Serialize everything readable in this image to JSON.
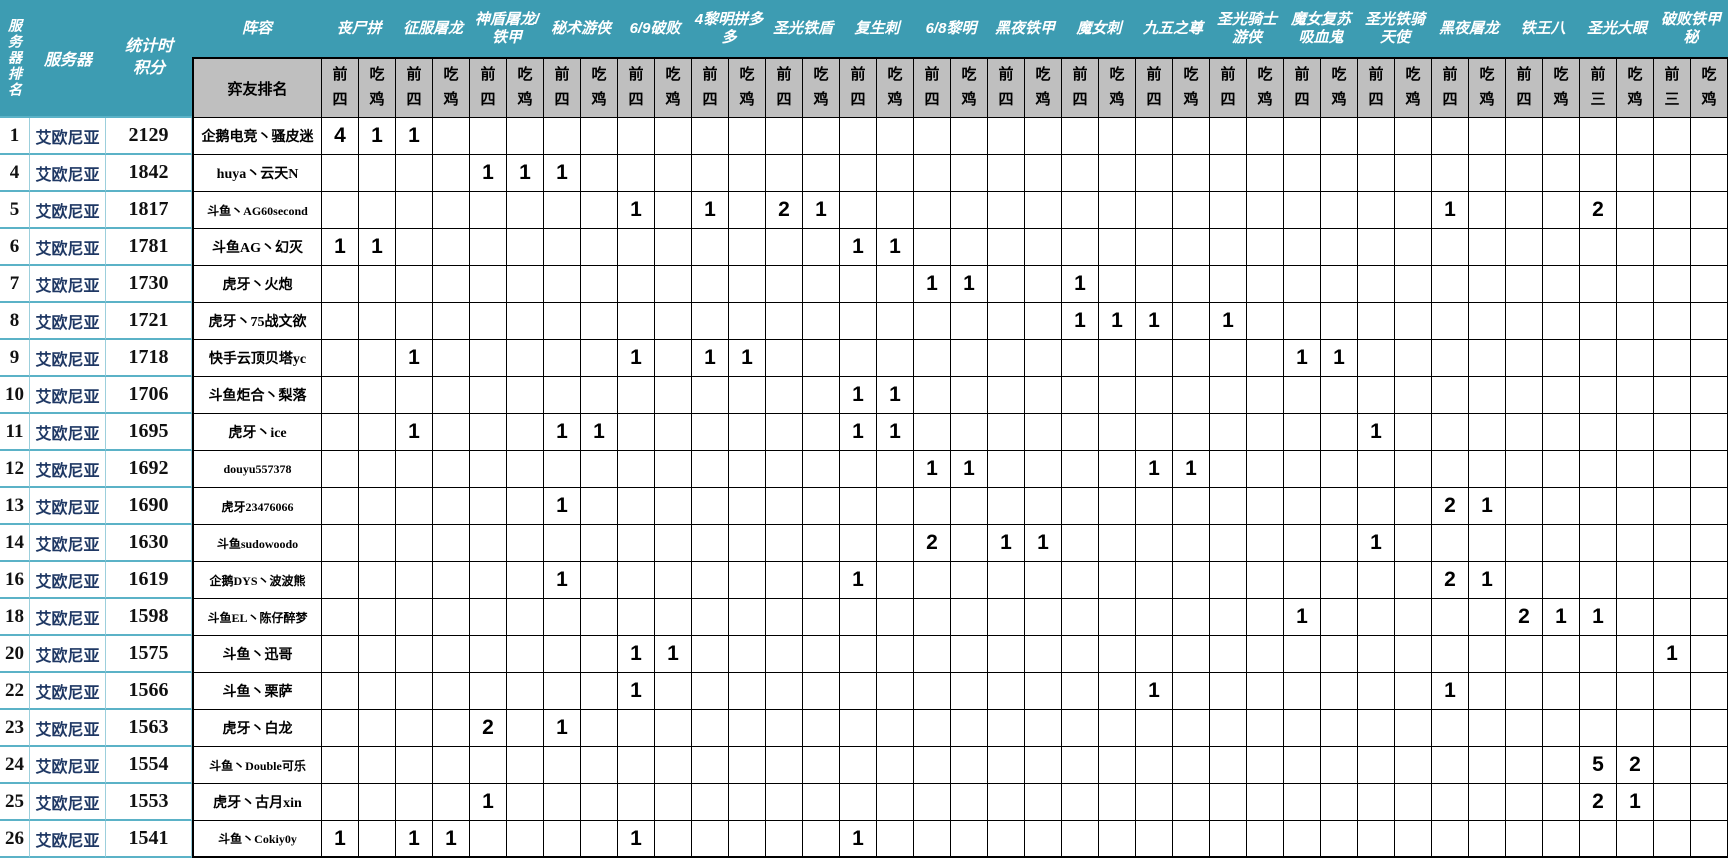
{
  "table": {
    "left_headers": {
      "rank": "服务器排名",
      "server": "服务器",
      "points": "统计时积分"
    },
    "comp_section_title": "阵容",
    "player_rank_header": "弈友排名",
    "comps": [
      {
        "name": "丧尸拼",
        "sub1": "前四",
        "sub2": "吃鸡"
      },
      {
        "name": "征服屠龙",
        "sub1": "前四",
        "sub2": "吃鸡"
      },
      {
        "name": "神盾屠龙/铁甲",
        "sub1": "前四",
        "sub2": "吃鸡"
      },
      {
        "name": "秘术游侠",
        "sub1": "前四",
        "sub2": "吃鸡"
      },
      {
        "name": "6/9破败",
        "sub1": "前四",
        "sub2": "吃鸡"
      },
      {
        "name": "4黎明拼多多",
        "sub1": "前四",
        "sub2": "吃鸡"
      },
      {
        "name": "圣光铁盾",
        "sub1": "前四",
        "sub2": "吃鸡"
      },
      {
        "name": "复生刺",
        "sub1": "前四",
        "sub2": "吃鸡"
      },
      {
        "name": "6/8黎明",
        "sub1": "前四",
        "sub2": "吃鸡"
      },
      {
        "name": "黑夜铁甲",
        "sub1": "前四",
        "sub2": "吃鸡"
      },
      {
        "name": "魔女刺",
        "sub1": "前四",
        "sub2": "吃鸡"
      },
      {
        "name": "九五之尊",
        "sub1": "前四",
        "sub2": "吃鸡"
      },
      {
        "name": "圣光骑士游侠",
        "sub1": "前四",
        "sub2": "吃鸡"
      },
      {
        "name": "魔女复苏吸血鬼",
        "sub1": "前四",
        "sub2": "吃鸡"
      },
      {
        "name": "圣光铁骑天使",
        "sub1": "前四",
        "sub2": "吃鸡"
      },
      {
        "name": "黑夜屠龙",
        "sub1": "前四",
        "sub2": "吃鸡"
      },
      {
        "name": "铁王八",
        "sub1": "前四",
        "sub2": "吃鸡"
      },
      {
        "name": "圣光大眼",
        "sub1": "前三",
        "sub2": "吃鸡"
      },
      {
        "name": "破败铁甲秘",
        "sub1": "前三",
        "sub2": "吃鸡"
      }
    ],
    "rows": [
      {
        "rank": "1",
        "server": "艾欧尼亚",
        "points": "2129",
        "player": "企鹅电竞丶骚皮迷",
        "cells": [
          "4",
          "1",
          "1",
          "",
          "",
          "",
          "",
          "",
          "",
          "",
          "",
          "",
          "",
          "",
          "",
          "",
          "",
          "",
          "",
          "",
          "",
          "",
          "",
          "",
          "",
          "",
          "",
          "",
          "",
          "",
          "",
          "",
          "",
          "",
          "",
          "",
          "",
          ""
        ]
      },
      {
        "rank": "4",
        "server": "艾欧尼亚",
        "points": "1842",
        "player": "huya丶云天N",
        "cells": [
          "",
          "",
          "",
          "",
          "1",
          "1",
          "1",
          "",
          "",
          "",
          "",
          "",
          "",
          "",
          "",
          "",
          "",
          "",
          "",
          "",
          "",
          "",
          "",
          "",
          "",
          "",
          "",
          "",
          "",
          "",
          "",
          "",
          "",
          "",
          "",
          "",
          "",
          ""
        ]
      },
      {
        "rank": "5",
        "server": "艾欧尼亚",
        "points": "1817",
        "player": "斗鱼丶AG60second",
        "cells": [
          "",
          "",
          "",
          "",
          "",
          "",
          "",
          "",
          "1",
          "",
          "1",
          "",
          "2",
          "1",
          "",
          "",
          "",
          "",
          "",
          "",
          "",
          "",
          "",
          "",
          "",
          "",
          "",
          "",
          "",
          "",
          "1",
          "",
          "",
          "",
          "2",
          "",
          "",
          ""
        ]
      },
      {
        "rank": "6",
        "server": "艾欧尼亚",
        "points": "1781",
        "player": "斗鱼AG丶幻灭",
        "cells": [
          "1",
          "1",
          "",
          "",
          "",
          "",
          "",
          "",
          "",
          "",
          "",
          "",
          "",
          "",
          "1",
          "1",
          "",
          "",
          "",
          "",
          "",
          "",
          "",
          "",
          "",
          "",
          "",
          "",
          "",
          "",
          "",
          "",
          "",
          "",
          "",
          "",
          "",
          ""
        ]
      },
      {
        "rank": "7",
        "server": "艾欧尼亚",
        "points": "1730",
        "player": "虎牙丶火炮",
        "cells": [
          "",
          "",
          "",
          "",
          "",
          "",
          "",
          "",
          "",
          "",
          "",
          "",
          "",
          "",
          "",
          "",
          "1",
          "1",
          "",
          "",
          "1",
          "",
          "",
          "",
          "",
          "",
          "",
          "",
          "",
          "",
          "",
          "",
          "",
          "",
          "",
          "",
          "",
          ""
        ]
      },
      {
        "rank": "8",
        "server": "艾欧尼亚",
        "points": "1721",
        "player": "虎牙丶75战文欲",
        "cells": [
          "",
          "",
          "",
          "",
          "",
          "",
          "",
          "",
          "",
          "",
          "",
          "",
          "",
          "",
          "",
          "",
          "",
          "",
          "",
          "",
          "1",
          "1",
          "1",
          "",
          "1",
          "",
          "",
          "",
          "",
          "",
          "",
          "",
          "",
          "",
          "",
          "",
          "",
          ""
        ]
      },
      {
        "rank": "9",
        "server": "艾欧尼亚",
        "points": "1718",
        "player": "快手云顶贝塔yc",
        "cells": [
          "",
          "",
          "1",
          "",
          "",
          "",
          "",
          "",
          "1",
          "",
          "1",
          "1",
          "",
          "",
          "",
          "",
          "",
          "",
          "",
          "",
          "",
          "",
          "",
          "",
          "",
          "",
          "1",
          "1",
          "",
          "",
          "",
          "",
          "",
          "",
          "",
          "",
          "",
          ""
        ]
      },
      {
        "rank": "10",
        "server": "艾欧尼亚",
        "points": "1706",
        "player": "斗鱼炬合丶梨落",
        "cells": [
          "",
          "",
          "",
          "",
          "",
          "",
          "",
          "",
          "",
          "",
          "",
          "",
          "",
          "",
          "1",
          "1",
          "",
          "",
          "",
          "",
          "",
          "",
          "",
          "",
          "",
          "",
          "",
          "",
          "",
          "",
          "",
          "",
          "",
          "",
          "",
          "",
          "",
          ""
        ]
      },
      {
        "rank": "11",
        "server": "艾欧尼亚",
        "points": "1695",
        "player": "虎牙丶ice",
        "cells": [
          "",
          "",
          "1",
          "",
          "",
          "",
          "1",
          "1",
          "",
          "",
          "",
          "",
          "",
          "",
          "1",
          "1",
          "",
          "",
          "",
          "",
          "",
          "",
          "",
          "",
          "",
          "",
          "",
          "",
          "1",
          "",
          "",
          "",
          "",
          "",
          "",
          "",
          "",
          ""
        ]
      },
      {
        "rank": "12",
        "server": "艾欧尼亚",
        "points": "1692",
        "player": "douyu557378",
        "cells": [
          "",
          "",
          "",
          "",
          "",
          "",
          "",
          "",
          "",
          "",
          "",
          "",
          "",
          "",
          "",
          "",
          "1",
          "1",
          "",
          "",
          "",
          "",
          "1",
          "1",
          "",
          "",
          "",
          "",
          "",
          "",
          "",
          "",
          "",
          "",
          "",
          "",
          "",
          ""
        ]
      },
      {
        "rank": "13",
        "server": "艾欧尼亚",
        "points": "1690",
        "player": "虎牙23476066",
        "cells": [
          "",
          "",
          "",
          "",
          "",
          "",
          "1",
          "",
          "",
          "",
          "",
          "",
          "",
          "",
          "",
          "",
          "",
          "",
          "",
          "",
          "",
          "",
          "",
          "",
          "",
          "",
          "",
          "",
          "",
          "",
          "2",
          "1",
          "",
          "",
          "",
          "",
          "",
          ""
        ]
      },
      {
        "rank": "14",
        "server": "艾欧尼亚",
        "points": "1630",
        "player": "斗鱼sudowoodo",
        "cells": [
          "",
          "",
          "",
          "",
          "",
          "",
          "",
          "",
          "",
          "",
          "",
          "",
          "",
          "",
          "",
          "",
          "2",
          "",
          "1",
          "1",
          "",
          "",
          "",
          "",
          "",
          "",
          "",
          "",
          "1",
          "",
          "",
          "",
          "",
          "",
          "",
          "",
          "",
          ""
        ]
      },
      {
        "rank": "16",
        "server": "艾欧尼亚",
        "points": "1619",
        "player": "企鹅DYS丶波波熊",
        "cells": [
          "",
          "",
          "",
          "",
          "",
          "",
          "1",
          "",
          "",
          "",
          "",
          "",
          "",
          "",
          "1",
          "",
          "",
          "",
          "",
          "",
          "",
          "",
          "",
          "",
          "",
          "",
          "",
          "",
          "",
          "",
          "2",
          "1",
          "",
          "",
          "",
          "",
          "",
          ""
        ]
      },
      {
        "rank": "18",
        "server": "艾欧尼亚",
        "points": "1598",
        "player": "斗鱼EL丶陈仔醉梦",
        "cells": [
          "",
          "",
          "",
          "",
          "",
          "",
          "",
          "",
          "",
          "",
          "",
          "",
          "",
          "",
          "",
          "",
          "",
          "",
          "",
          "",
          "",
          "",
          "",
          "",
          "",
          "",
          "1",
          "",
          "",
          "",
          "",
          "",
          "2",
          "1",
          "1",
          "",
          "",
          ""
        ]
      },
      {
        "rank": "20",
        "server": "艾欧尼亚",
        "points": "1575",
        "player": "斗鱼丶迅哥",
        "cells": [
          "",
          "",
          "",
          "",
          "",
          "",
          "",
          "",
          "1",
          "1",
          "",
          "",
          "",
          "",
          "",
          "",
          "",
          "",
          "",
          "",
          "",
          "",
          "",
          "",
          "",
          "",
          "",
          "",
          "",
          "",
          "",
          "",
          "",
          "",
          "",
          "",
          "1",
          ""
        ]
      },
      {
        "rank": "22",
        "server": "艾欧尼亚",
        "points": "1566",
        "player": "斗鱼丶栗萨",
        "cells": [
          "",
          "",
          "",
          "",
          "",
          "",
          "",
          "",
          "1",
          "",
          "",
          "",
          "",
          "",
          "",
          "",
          "",
          "",
          "",
          "",
          "",
          "",
          "1",
          "",
          "",
          "",
          "",
          "",
          "",
          "",
          "1",
          "",
          "",
          "",
          "",
          "",
          "",
          ""
        ]
      },
      {
        "rank": "23",
        "server": "艾欧尼亚",
        "points": "1563",
        "player": "虎牙丶白龙",
        "cells": [
          "",
          "",
          "",
          "",
          "2",
          "",
          "1",
          "",
          "",
          "",
          "",
          "",
          "",
          "",
          "",
          "",
          "",
          "",
          "",
          "",
          "",
          "",
          "",
          "",
          "",
          "",
          "",
          "",
          "",
          "",
          "",
          "",
          "",
          "",
          "",
          "",
          "",
          ""
        ]
      },
      {
        "rank": "24",
        "server": "艾欧尼亚",
        "points": "1554",
        "player": "斗鱼丶Double可乐",
        "cells": [
          "",
          "",
          "",
          "",
          "",
          "",
          "",
          "",
          "",
          "",
          "",
          "",
          "",
          "",
          "",
          "",
          "",
          "",
          "",
          "",
          "",
          "",
          "",
          "",
          "",
          "",
          "",
          "",
          "",
          "",
          "",
          "",
          "",
          "",
          "5",
          "2",
          "",
          ""
        ]
      },
      {
        "rank": "25",
        "server": "艾欧尼亚",
        "points": "1553",
        "player": "虎牙丶古月xin",
        "cells": [
          "",
          "",
          "",
          "",
          "1",
          "",
          "",
          "",
          "",
          "",
          "",
          "",
          "",
          "",
          "",
          "",
          "",
          "",
          "",
          "",
          "",
          "",
          "",
          "",
          "",
          "",
          "",
          "",
          "",
          "",
          "",
          "",
          "",
          "",
          "2",
          "1",
          "",
          ""
        ]
      },
      {
        "rank": "26",
        "server": "艾欧尼亚",
        "points": "1541",
        "player": "斗鱼丶Cokiy0y",
        "cells": [
          "1",
          "",
          "1",
          "1",
          "",
          "",
          "",
          "",
          "1",
          "",
          "",
          "",
          "",
          "",
          "1",
          "",
          "",
          "",
          "",
          "",
          "",
          "",
          "",
          "",
          "",
          "",
          "",
          "",
          "",
          "",
          "",
          "",
          "",
          "",
          "",
          "",
          "",
          ""
        ]
      }
    ]
  },
  "colors": {
    "header_teal": "#3D9CB2",
    "subheader_gray": "#BFBFBF",
    "left_border_blue": "#5BB2C7",
    "grid_border_black": "#000000",
    "server_text_navy": "#1F3864"
  },
  "layout": {
    "data_column_count": 38,
    "row_count": 20
  }
}
